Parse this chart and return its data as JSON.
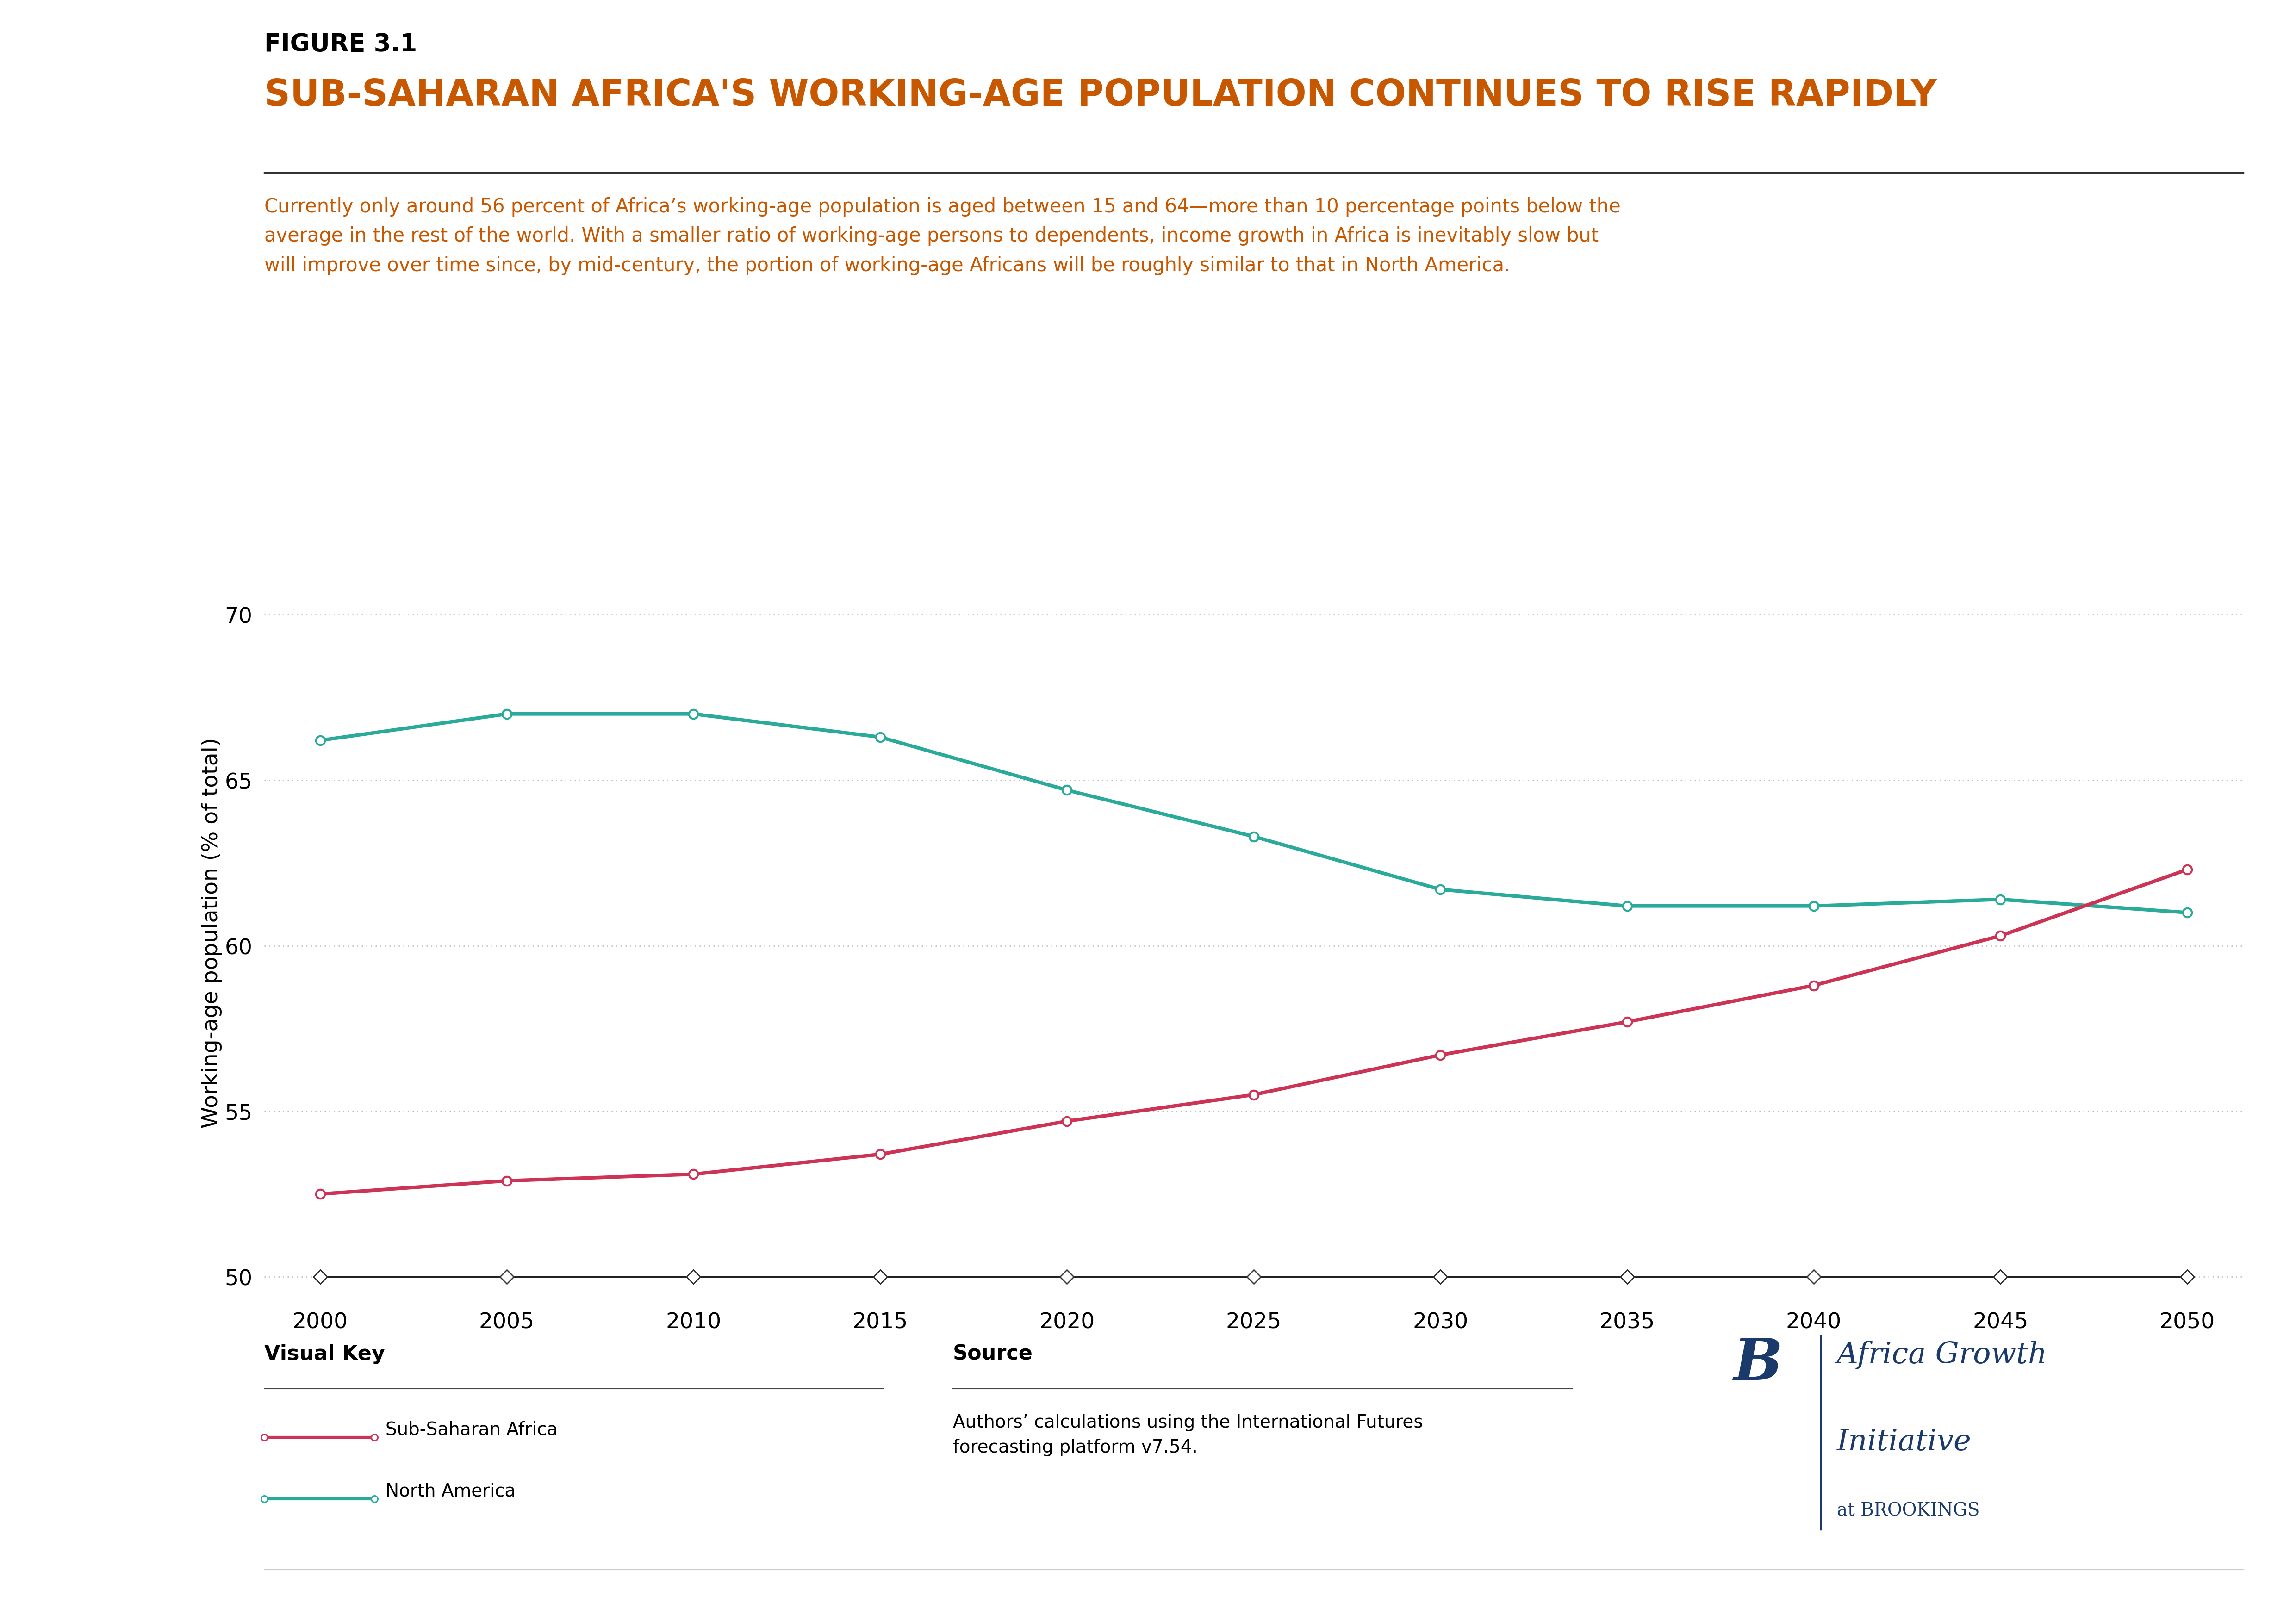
{
  "figure_label": "FIGURE 3.1",
  "title": "SUB-SAHARAN AFRICA'S WORKING-AGE POPULATION CONTINUES TO RISE RAPIDLY",
  "subtitle_line1": "Currently only around 56 percent of Africa’s working-age population is aged between 15 and 64—more than 10 percentage points below the",
  "subtitle_line2": "average in the rest of the world. With a smaller ratio of working-age persons to dependents, income growth in Africa is inevitably slow but",
  "subtitle_line3": "will improve over time since, by mid-century, the portion of working-age Africans will be roughly similar to that in North America.",
  "years": [
    2000,
    2005,
    2010,
    2015,
    2020,
    2025,
    2030,
    2035,
    2040,
    2045,
    2050
  ],
  "ssa_values": [
    52.5,
    52.9,
    53.1,
    53.7,
    54.7,
    55.5,
    56.7,
    57.7,
    58.8,
    60.3,
    62.3
  ],
  "na_values": [
    66.2,
    67.0,
    67.0,
    66.3,
    64.7,
    63.3,
    61.7,
    61.2,
    61.2,
    61.4,
    61.0
  ],
  "flat_values": [
    50.0,
    50.0,
    50.0,
    50.0,
    50.0,
    50.0,
    50.0,
    50.0,
    50.0,
    50.0,
    50.0
  ],
  "ssa_color": "#cc3355",
  "na_color": "#2aaa9a",
  "flat_line_color": "#222222",
  "flat_marker_edge": "#333333",
  "ylim": [
    49.3,
    71.5
  ],
  "yticks": [
    50,
    55,
    60,
    65,
    70
  ],
  "xlim": [
    1998.5,
    2051.5
  ],
  "xticks": [
    2000,
    2005,
    2010,
    2015,
    2020,
    2025,
    2030,
    2035,
    2040,
    2045,
    2050
  ],
  "ylabel": "Working-age population (% of total)",
  "figure_label_color": "#000000",
  "title_color": "#c85800",
  "subtitle_color": "#c85800",
  "source_text": "Authors’ calculations using the International Futures\nforecasting platform v7.54.",
  "legend_ssa_label": "Sub-Saharan Africa",
  "legend_na_label": "North America",
  "background_color": "#ffffff",
  "grid_color": "#bbbbbb",
  "line_width": 5.5,
  "marker_size": 14,
  "brookings_color": "#1a3a6b"
}
